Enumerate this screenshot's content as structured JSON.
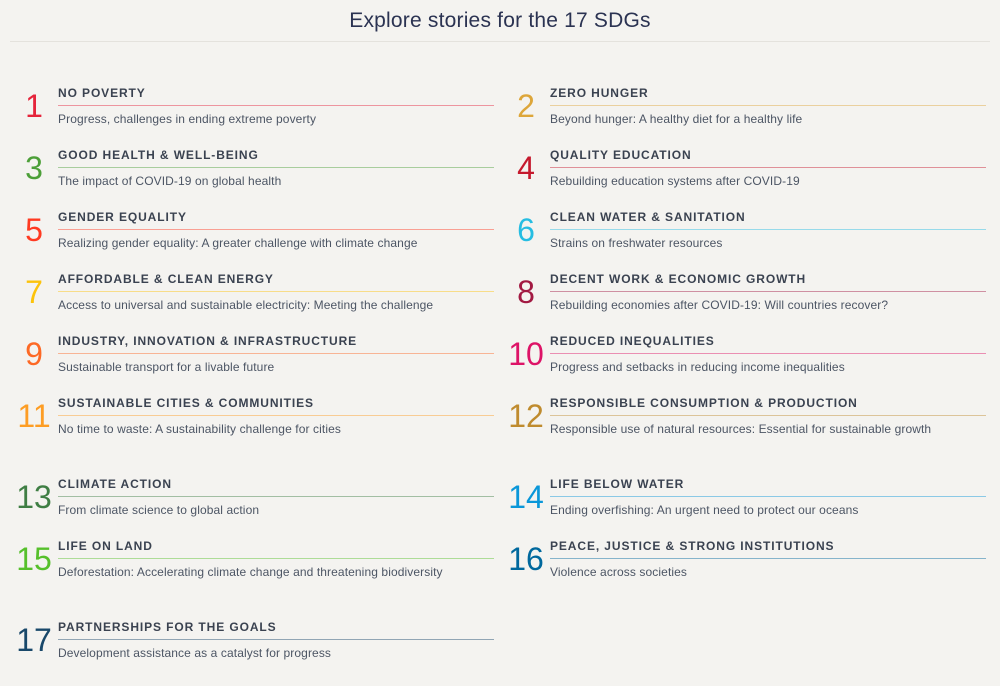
{
  "header": {
    "title": "Explore stories for the 17 SDGs"
  },
  "colors": {
    "background": "#F4F3F0",
    "page_title_text": "#2B3352",
    "item_title_text": "#3A4250",
    "item_description_text": "#4C5564",
    "header_divider": "#E4E2DD"
  },
  "sdgs": {
    "items": [
      {
        "number": "1",
        "title": "NO POVERTY",
        "description": "Progress, challenges in ending extreme poverty",
        "color": "#E5243B"
      },
      {
        "number": "2",
        "title": "ZERO HUNGER",
        "description": "Beyond hunger: A healthy diet for a healthy life",
        "color": "#DDA63A"
      },
      {
        "number": "3",
        "title": "GOOD HEALTH & WELL-BEING",
        "description": "The impact of COVID-19 on global health",
        "color": "#4C9F38"
      },
      {
        "number": "4",
        "title": "QUALITY EDUCATION",
        "description": "Rebuilding education systems after COVID-19",
        "color": "#C5192D"
      },
      {
        "number": "5",
        "title": "GENDER EQUALITY",
        "description": "Realizing gender equality: A greater challenge with climate change",
        "color": "#FF3A21"
      },
      {
        "number": "6",
        "title": "CLEAN WATER & SANITATION",
        "description": "Strains on freshwater resources",
        "color": "#26BDE2"
      },
      {
        "number": "7",
        "title": "AFFORDABLE & CLEAN ENERGY",
        "description": "Access to universal and sustainable electricity: Meeting the challenge",
        "color": "#FCC30B"
      },
      {
        "number": "8",
        "title": "DECENT WORK & ECONOMIC GROWTH",
        "description": "Rebuilding economies after COVID-19: Will countries recover?",
        "color": "#A21942"
      },
      {
        "number": "9",
        "title": "INDUSTRY, INNOVATION & INFRASTRUCTURE",
        "description": "Sustainable transport for a livable future",
        "color": "#FD6925"
      },
      {
        "number": "10",
        "title": "REDUCED INEQUALITIES",
        "description": "Progress and setbacks in reducing income inequalities",
        "color": "#DD1367"
      },
      {
        "number": "11",
        "title": "SUSTAINABLE CITIES & COMMUNITIES",
        "description": "No time to waste: A sustainability challenge for cities",
        "color": "#FD9D24"
      },
      {
        "number": "12",
        "title": "RESPONSIBLE CONSUMPTION & PRODUCTION",
        "description": "Responsible use of natural resources: Essential for sustainable growth",
        "color": "#BF8B2E"
      },
      {
        "number": "13",
        "title": "CLIMATE ACTION",
        "description": "From climate science to global action",
        "color": "#3F7E44"
      },
      {
        "number": "14",
        "title": "LIFE BELOW WATER",
        "description": "Ending overfishing: An urgent need to protect our oceans",
        "color": "#0A97D9"
      },
      {
        "number": "15",
        "title": "LIFE ON LAND",
        "description": "Deforestation: Accelerating climate change and threatening biodiversity",
        "color": "#56C02B"
      },
      {
        "number": "16",
        "title": "PEACE, JUSTICE & STRONG INSTITUTIONS",
        "description": "Violence across societies",
        "color": "#00689D"
      },
      {
        "number": "17",
        "title": "PARTNERSHIPS FOR THE GOALS",
        "description": "Development assistance as a catalyst for progress",
        "color": "#19486A"
      }
    ]
  }
}
